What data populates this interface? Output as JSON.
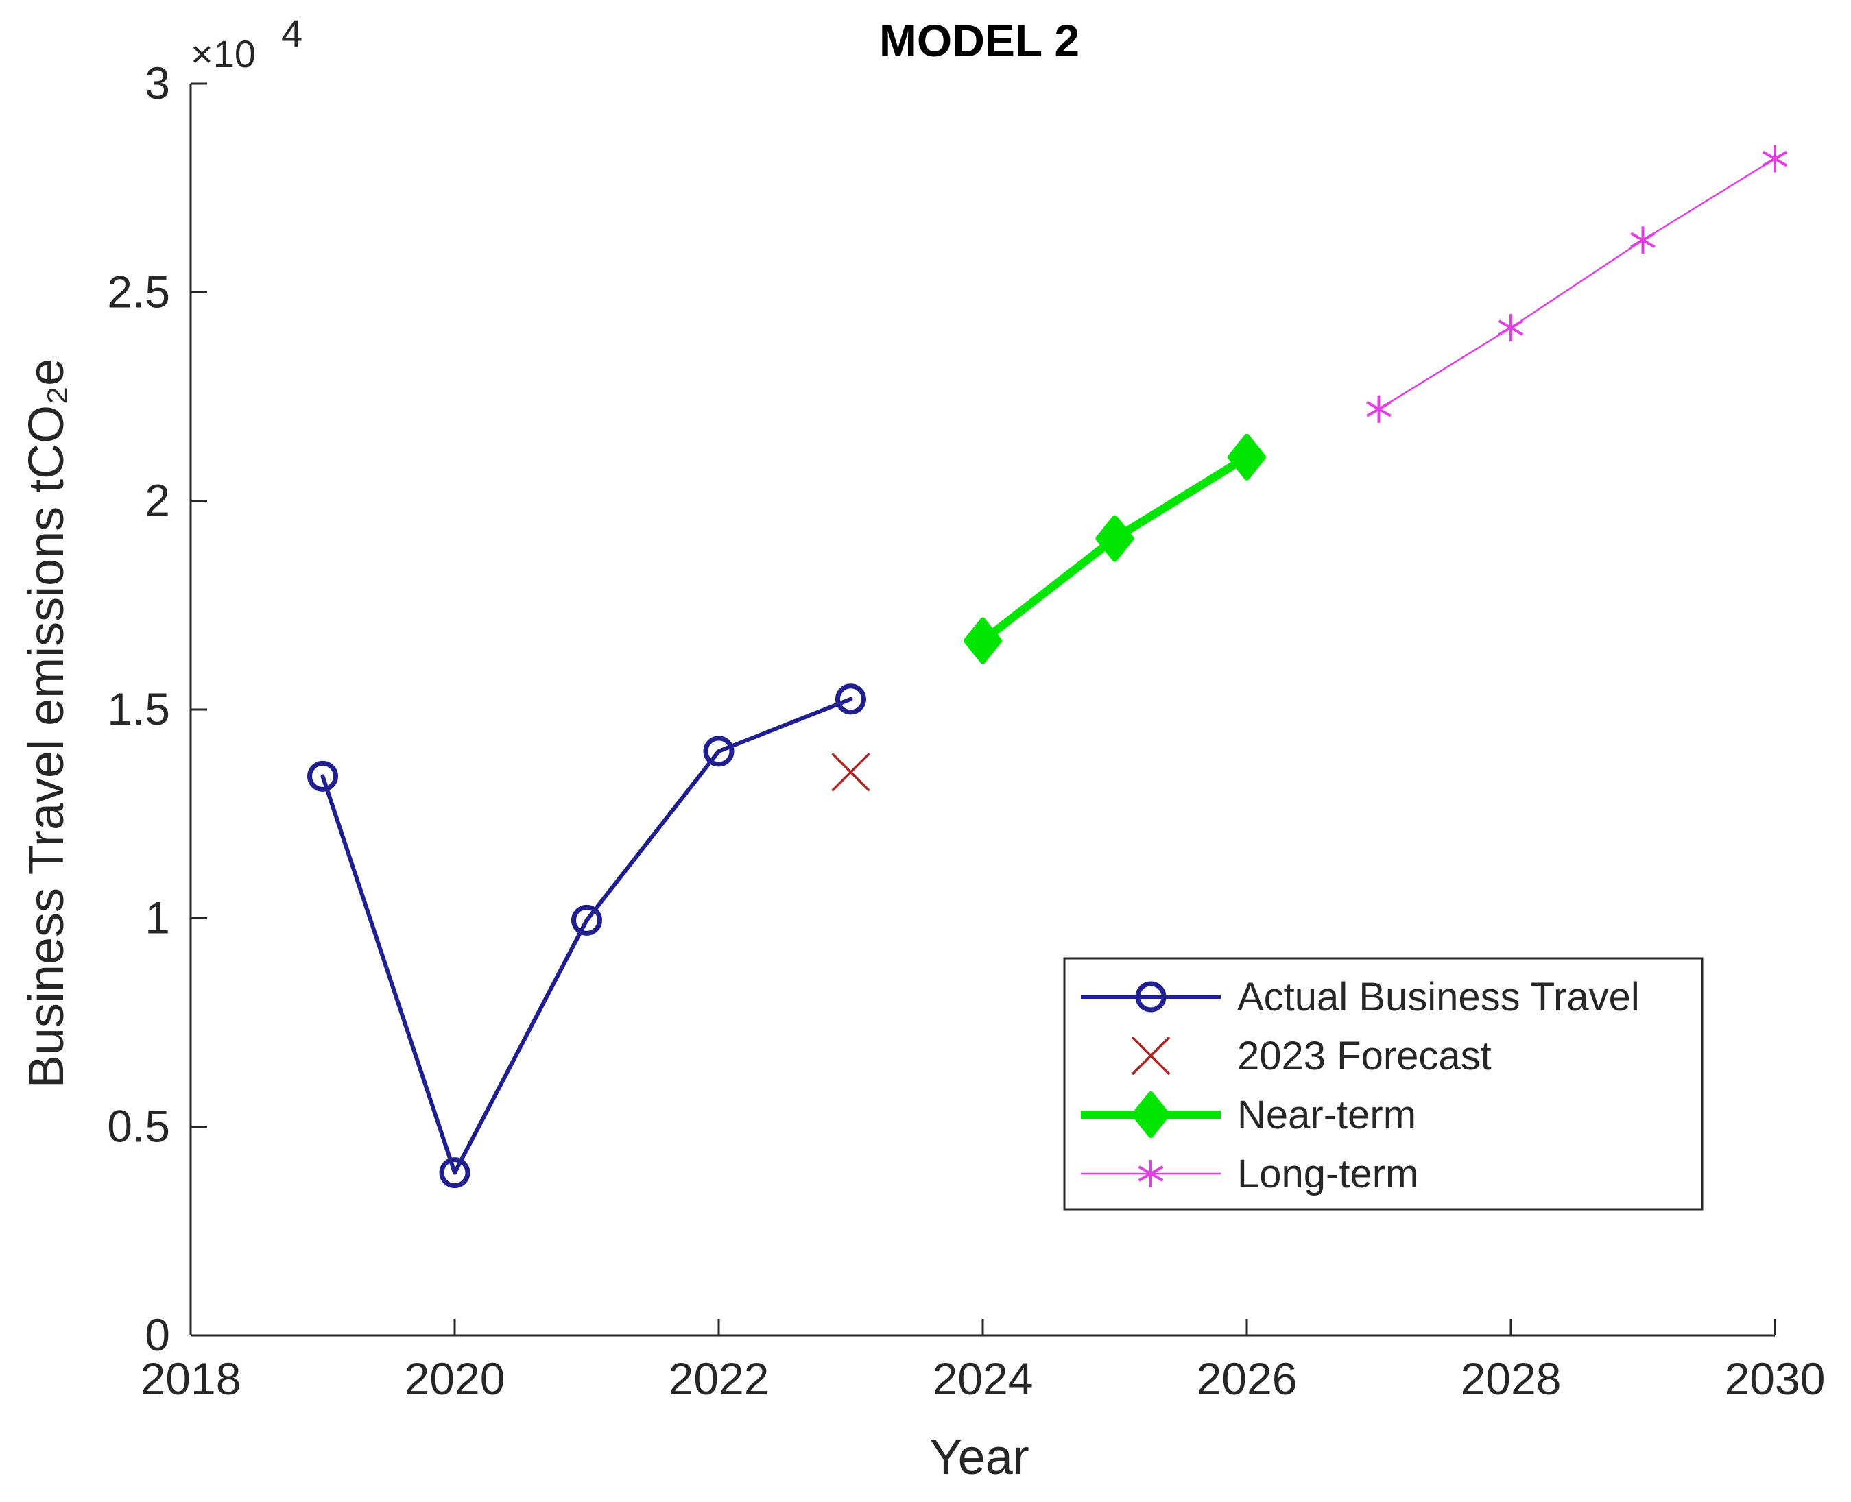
{
  "chart_data": {
    "type": "line",
    "title": "MODEL 2",
    "xlabel": "Year",
    "ylabel": "Business Travel emissions tCO₂e",
    "y_multiplier": "×10",
    "y_multiplier_exp": "4",
    "xlim": [
      2018,
      2030
    ],
    "ylim": [
      0,
      3
    ],
    "x_ticks": [
      2018,
      2020,
      2022,
      2024,
      2026,
      2028,
      2030
    ],
    "x_tick_labels": [
      "2018",
      "2020",
      "2022",
      "2024",
      "2026",
      "2028",
      "2030"
    ],
    "y_ticks": [
      0,
      0.5,
      1,
      1.5,
      2,
      2.5,
      3
    ],
    "y_tick_labels": [
      "0",
      "0.5",
      "1",
      "1.5",
      "2",
      "2.5",
      "3"
    ],
    "grid": false,
    "legend_position": "bottom-right",
    "series": [
      {
        "name": "Actual Business Travel",
        "color": "#1f1f8f",
        "marker": "circle",
        "line": "solid",
        "points": [
          [
            2019,
            1.34
          ],
          [
            2020,
            0.39
          ],
          [
            2021,
            0.995
          ],
          [
            2022,
            1.4
          ],
          [
            2023,
            1.525
          ]
        ]
      },
      {
        "name": "2023 Forecast",
        "color": "#b22222",
        "marker": "x",
        "line": "none",
        "points": [
          [
            2023,
            1.35
          ]
        ]
      },
      {
        "name": "Near-term",
        "color": "#00e600",
        "marker": "diamond",
        "line": "solid-thick",
        "points": [
          [
            2024,
            1.665
          ],
          [
            2025,
            1.91
          ],
          [
            2026,
            2.105
          ]
        ]
      },
      {
        "name": "Long-term",
        "color": "#e040e0",
        "marker": "asterisk",
        "line": "solid-thin",
        "points": [
          [
            2027,
            2.22
          ],
          [
            2028,
            2.415
          ],
          [
            2029,
            2.625
          ],
          [
            2030,
            2.82
          ]
        ]
      }
    ]
  }
}
